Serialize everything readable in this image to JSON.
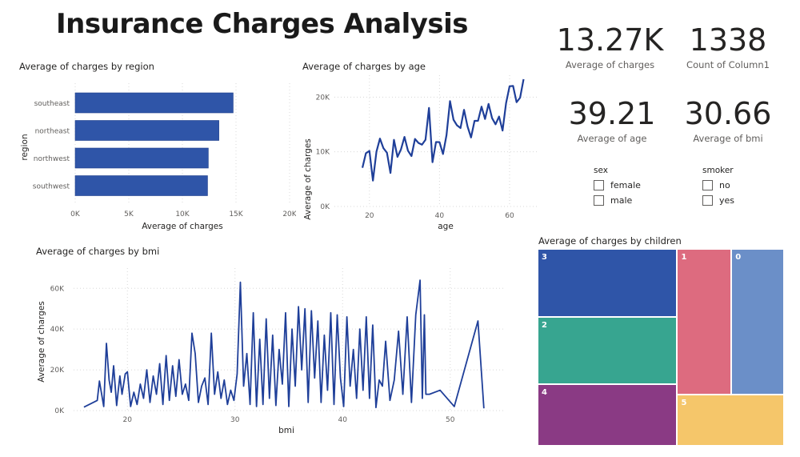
{
  "page": {
    "title": "Insurance Charges Analysis"
  },
  "cards": [
    {
      "value": "13.27K",
      "label": "Average of charges"
    },
    {
      "value": "1338",
      "label": "Count of Column1"
    },
    {
      "value": "39.21",
      "label": "Average of age"
    },
    {
      "value": "30.66",
      "label": "Average of bmi"
    }
  ],
  "slicers": [
    {
      "title": "sex",
      "options": [
        {
          "label": "female",
          "checked": false
        },
        {
          "label": "male",
          "checked": false
        }
      ]
    },
    {
      "title": "smoker",
      "options": [
        {
          "label": "no",
          "checked": false
        },
        {
          "label": "yes",
          "checked": false
        }
      ]
    }
  ],
  "colors": {
    "primary": "#2f55a8",
    "line": "#1f3f99"
  },
  "chart_data": [
    {
      "id": "region",
      "type": "bar",
      "orientation": "horizontal",
      "title": "Average of charges by region",
      "xlabel": "Average of charges",
      "ylabel": "region",
      "categories": [
        "southeast",
        "northeast",
        "northwest",
        "southwest"
      ],
      "values": [
        14735,
        13406,
        12418,
        12347
      ],
      "xlim": [
        0,
        20000
      ],
      "xticks": [
        "0K",
        "5K",
        "10K",
        "15K",
        "20K"
      ],
      "xtick_values": [
        0,
        5000,
        10000,
        15000,
        20000
      ],
      "grid": true,
      "color": "#2f55a8"
    },
    {
      "id": "age",
      "type": "line",
      "title": "Average of charges by age",
      "xlabel": "age",
      "ylabel": "Average of charges",
      "x": [
        18,
        19,
        20,
        21,
        22,
        23,
        24,
        25,
        26,
        27,
        28,
        29,
        30,
        31,
        32,
        33,
        34,
        35,
        36,
        37,
        38,
        39,
        40,
        41,
        42,
        43,
        44,
        45,
        46,
        47,
        48,
        49,
        50,
        51,
        52,
        53,
        54,
        55,
        56,
        57,
        58,
        59,
        60,
        61,
        62,
        63,
        64
      ],
      "y": [
        7086,
        9748,
        10159,
        4730,
        10012,
        12420,
        10648,
        9838,
        6133,
        12184,
        9069,
        10430,
        12720,
        10196,
        9220,
        12351,
        11613,
        11307,
        12204,
        18020,
        8102,
        11779,
        11772,
        9600,
        13061,
        19267,
        15859,
        14830,
        14350,
        17681,
        14632,
        12625,
        15663,
        15682,
        18256,
        15998,
        18758,
        16164,
        15025,
        16448,
        13878,
        18896,
        21979,
        22044,
        19068,
        19885,
        23276
      ],
      "xlim": [
        10,
        68
      ],
      "ylim": [
        0,
        24000
      ],
      "xticks": [
        "20",
        "40",
        "60"
      ],
      "xtick_values": [
        20,
        40,
        60
      ],
      "yticks": [
        "0K",
        "10K",
        "20K"
      ],
      "ytick_values": [
        0,
        10000,
        20000
      ],
      "grid": true,
      "color": "#1f3f99"
    },
    {
      "id": "bmi",
      "type": "line",
      "title": "Average of charges by bmi",
      "xlabel": "bmi",
      "ylabel": "Average of charges",
      "xlim": [
        15,
        55
      ],
      "ylim": [
        0,
        66000
      ],
      "xticks": [
        "20",
        "30",
        "40",
        "50"
      ],
      "xtick_values": [
        20,
        30,
        40,
        50
      ],
      "yticks": [
        "0K",
        "20K",
        "40K",
        "60K"
      ],
      "ytick_values": [
        0,
        20000,
        40000,
        60000
      ],
      "grid": true,
      "color": "#1f3f99",
      "x": [
        15.96,
        17.2,
        17.4,
        17.8,
        18.05,
        18.3,
        18.5,
        18.72,
        19.0,
        19.3,
        19.5,
        19.8,
        20.0,
        20.3,
        20.6,
        20.9,
        21.2,
        21.5,
        21.8,
        22.1,
        22.4,
        22.7,
        23.0,
        23.3,
        23.6,
        23.9,
        24.2,
        24.5,
        24.8,
        25.1,
        25.4,
        25.7,
        26.0,
        26.3,
        26.6,
        26.9,
        27.2,
        27.5,
        27.8,
        28.1,
        28.4,
        28.7,
        29.0,
        29.3,
        29.6,
        29.9,
        30.2,
        30.5,
        30.8,
        31.1,
        31.4,
        31.7,
        32.0,
        32.3,
        32.6,
        32.9,
        33.2,
        33.5,
        33.8,
        34.1,
        34.4,
        34.7,
        35.0,
        35.3,
        35.6,
        35.9,
        36.2,
        36.5,
        36.8,
        37.1,
        37.4,
        37.7,
        38.0,
        38.3,
        38.6,
        38.9,
        39.2,
        39.5,
        39.8,
        40.1,
        40.4,
        40.7,
        41.0,
        41.3,
        41.6,
        41.9,
        42.2,
        42.5,
        42.8,
        43.1,
        43.4,
        43.7,
        44.0,
        44.4,
        44.8,
        45.2,
        45.6,
        46.0,
        46.4,
        46.8,
        47.2,
        47.41,
        47.6,
        47.74,
        48.07,
        49.06,
        50.38,
        52.58,
        53.13
      ],
      "y": [
        1700,
        5000,
        14500,
        2000,
        33000,
        15000,
        9000,
        22000,
        2500,
        17000,
        8000,
        18000,
        19000,
        2000,
        9000,
        3000,
        13000,
        6000,
        20000,
        4000,
        17000,
        8000,
        23000,
        3000,
        27000,
        5000,
        22000,
        7000,
        25000,
        8000,
        13000,
        5000,
        38000,
        28000,
        4000,
        12000,
        16000,
        3000,
        38000,
        8000,
        19000,
        6000,
        15000,
        3000,
        10000,
        5000,
        18000,
        63000,
        12000,
        28000,
        3000,
        48000,
        2000,
        35000,
        3000,
        45000,
        6000,
        37000,
        2500,
        30000,
        13000,
        48000,
        2000,
        40000,
        12000,
        51000,
        20000,
        50000,
        4000,
        49000,
        16000,
        44000,
        4000,
        37000,
        10000,
        48000,
        3000,
        47000,
        16000,
        2000,
        46000,
        12000,
        30000,
        6000,
        40000,
        10000,
        46000,
        6000,
        42000,
        1500,
        15000,
        12000,
        34000,
        5000,
        15000,
        39000,
        8000,
        46000,
        4000,
        47000,
        64000,
        6000,
        47000,
        8000,
        8000,
        10000,
        2000,
        44000,
        1100
      ]
    },
    {
      "id": "children",
      "type": "treemap",
      "title": "Average of charges by children",
      "categories": [
        "3",
        "2",
        "4",
        "1",
        "0",
        "5"
      ],
      "values": [
        15355,
        15074,
        13851,
        12731,
        12366,
        8786
      ],
      "colors": [
        "#2f55a8",
        "#37a590",
        "#8a3a84",
        "#dd6b7f",
        "#6b8fc8",
        "#f5c66a"
      ]
    }
  ]
}
